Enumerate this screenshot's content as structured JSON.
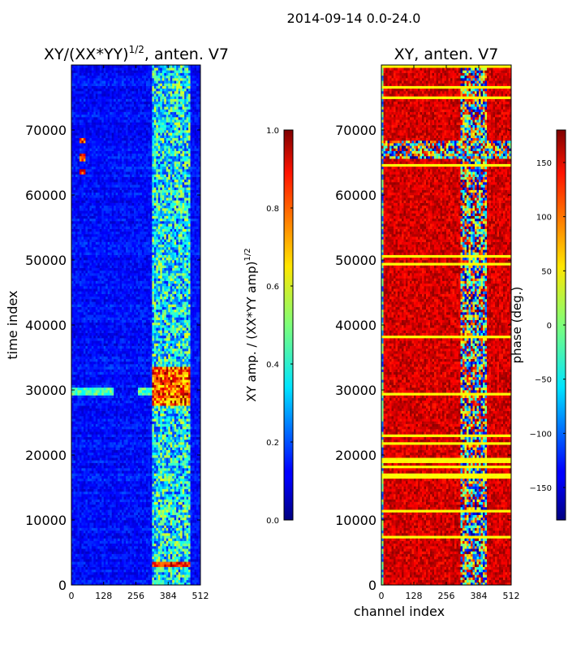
{
  "figure_title": "2014-09-14 0.0-24.0",
  "chart_data": [
    {
      "type": "heatmap",
      "title": "XY/(XX*YY)^1/2, anten. V7",
      "title_base": "XY/(XX*YY)",
      "title_exp": "1/2",
      "title_suffix": ", anten. V7",
      "xlabel": "",
      "ylabel": "time index",
      "x_range": [
        0,
        512
      ],
      "y_range": [
        0,
        80000
      ],
      "x_ticks": [
        0,
        128,
        256,
        384,
        512
      ],
      "y_ticks": [
        0,
        10000,
        20000,
        30000,
        40000,
        50000,
        60000,
        70000
      ],
      "colormap": "jet",
      "colorbar": {
        "label": "XY amp. / (XX*YY amp)^1/2",
        "label_base": "XY amp. / (XX*YY amp)",
        "label_exp": "1/2",
        "range": [
          0.0,
          1.0
        ],
        "ticks": [
          "0.0",
          "0.2",
          "0.4",
          "0.6",
          "0.8",
          "1.0"
        ]
      },
      "features": {
        "bright_channel_range": [
          320,
          470
        ],
        "bright_time_band": [
          27500,
          33500
        ],
        "line_at": 29800,
        "flare_times": [
          63500,
          65800,
          68300
        ]
      }
    },
    {
      "type": "heatmap",
      "title": "XY, anten. V7",
      "xlabel": "channel index",
      "ylabel": "",
      "x_range": [
        0,
        512
      ],
      "y_range": [
        0,
        80000
      ],
      "x_ticks": [
        0,
        128,
        256,
        384,
        512
      ],
      "y_ticks": [
        0,
        10000,
        20000,
        30000,
        40000,
        50000,
        60000,
        70000
      ],
      "colormap": "jet",
      "colorbar": {
        "label": "phase (deg.)",
        "range": [
          -180,
          180
        ],
        "ticks": [
          "−150",
          "−100",
          "−50",
          "0",
          "50",
          "100",
          "150"
        ]
      },
      "features": {
        "dominant_phase_deg": 150,
        "noisy_channel_range": [
          310,
          420
        ],
        "noisy_time_band": [
          65500,
          68500
        ]
      }
    }
  ],
  "colors": {
    "jet_low": "#00007f",
    "jet_high": "#7f0000",
    "line_yellow": "#ffff66"
  }
}
